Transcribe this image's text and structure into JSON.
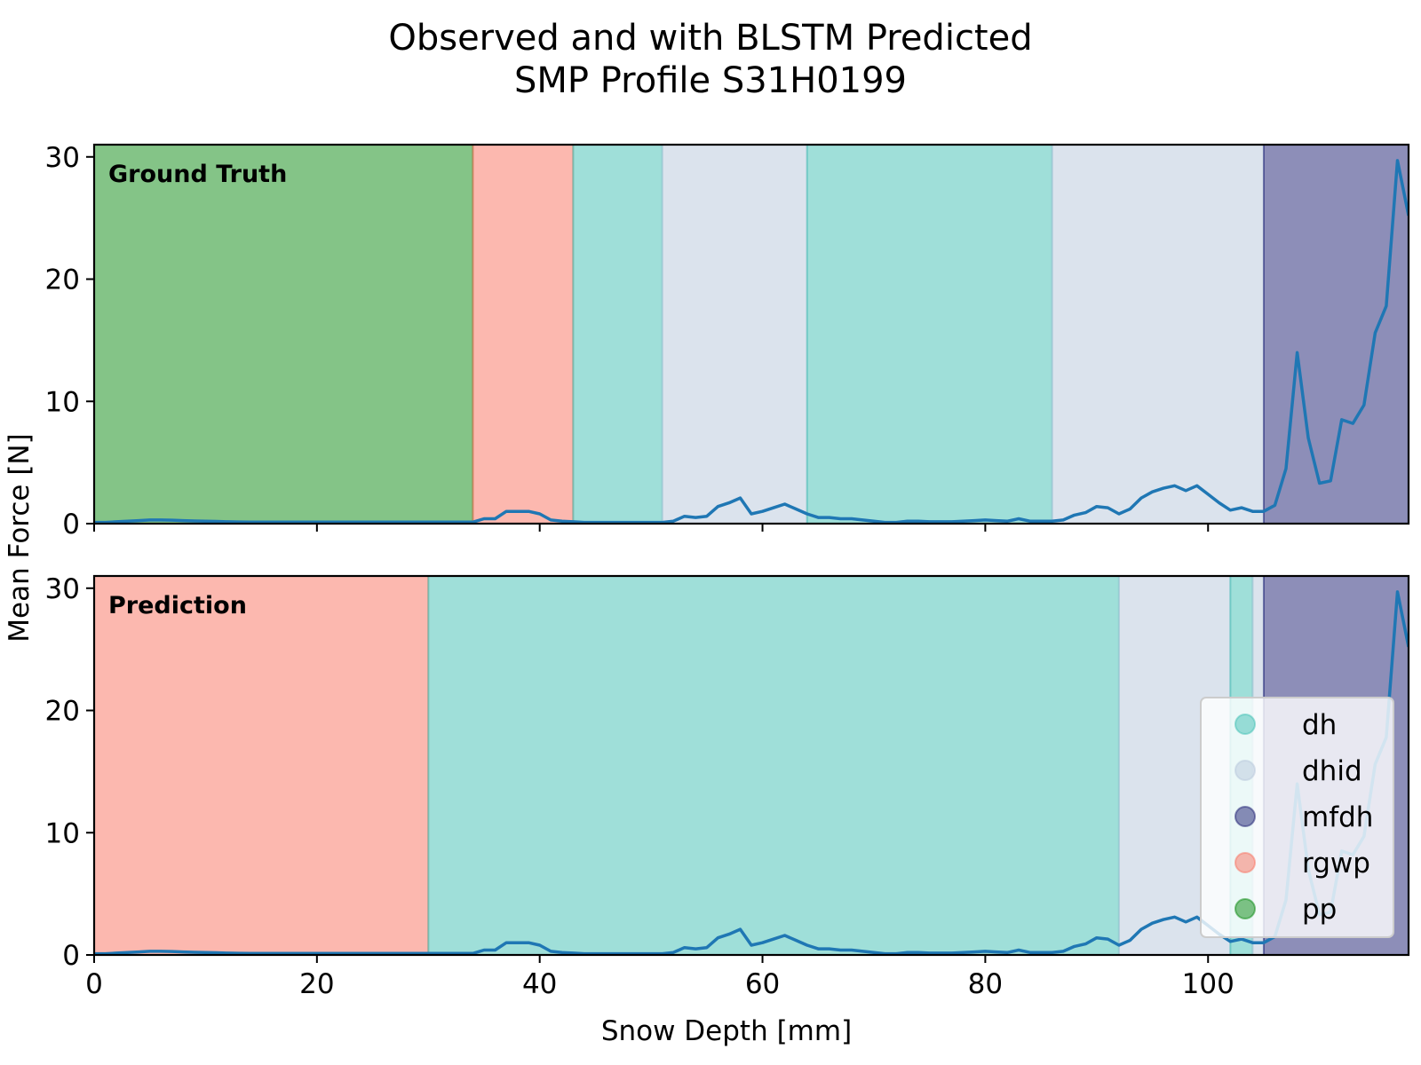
{
  "title_lines": [
    "Observed and with BLSTM Predicted",
    "SMP Profile S31H0199"
  ],
  "chart_data": {
    "type": "line",
    "title": "Observed and with BLSTM Predicted SMP Profile S31H0199",
    "xlabel": "Snow Depth [mm]",
    "ylabel": "Mean Force [N]",
    "xlim": [
      0,
      118
    ],
    "ylim": [
      0,
      31
    ],
    "x_ticks": [
      0,
      20,
      40,
      60,
      80,
      100
    ],
    "y_ticks": [
      0,
      10,
      20,
      30
    ],
    "grid": false,
    "legend_placement": "lower-right",
    "class_colors": {
      "dh": "#40c0b4",
      "dhid": "#b8c8dc",
      "mfdh": "#1b1d72",
      "rgwp": "#fa7260",
      "pp": "#0a8a10"
    },
    "legend": [
      "dh",
      "dhid",
      "mfdh",
      "rgwp",
      "pp"
    ],
    "line_color": "#1f77b4",
    "signal": {
      "x": [
        0,
        1,
        2,
        3,
        4,
        5,
        6,
        7,
        8,
        9,
        10,
        11,
        12,
        13,
        14,
        15,
        16,
        17,
        18,
        19,
        20,
        21,
        22,
        23,
        24,
        25,
        26,
        27,
        28,
        29,
        30,
        31,
        32,
        33,
        34,
        35,
        36,
        37,
        38,
        39,
        40,
        41,
        42,
        43,
        44,
        45,
        46,
        47,
        48,
        49,
        50,
        51,
        52,
        53,
        54,
        55,
        56,
        57,
        58,
        59,
        60,
        61,
        62,
        63,
        64,
        65,
        66,
        67,
        68,
        69,
        70,
        71,
        72,
        73,
        74,
        75,
        76,
        77,
        78,
        79,
        80,
        81,
        82,
        83,
        84,
        85,
        86,
        87,
        88,
        89,
        90,
        91,
        92,
        93,
        94,
        95,
        96,
        97,
        98,
        99,
        100,
        101,
        102,
        103,
        104,
        105,
        106,
        107,
        108,
        109,
        110,
        111,
        112,
        113,
        114,
        115,
        116,
        117,
        118
      ],
      "y": [
        0.1,
        0.1,
        0.15,
        0.2,
        0.25,
        0.3,
        0.3,
        0.28,
        0.25,
        0.22,
        0.2,
        0.18,
        0.15,
        0.14,
        0.13,
        0.12,
        0.12,
        0.12,
        0.12,
        0.12,
        0.12,
        0.12,
        0.12,
        0.12,
        0.12,
        0.12,
        0.12,
        0.12,
        0.12,
        0.12,
        0.12,
        0.12,
        0.12,
        0.12,
        0.12,
        0.4,
        0.4,
        1.0,
        1.0,
        1.0,
        0.8,
        0.3,
        0.2,
        0.15,
        0.1,
        0.1,
        0.1,
        0.1,
        0.1,
        0.1,
        0.1,
        0.1,
        0.2,
        0.6,
        0.5,
        0.6,
        1.4,
        1.7,
        2.1,
        0.8,
        1.0,
        1.3,
        1.6,
        1.2,
        0.8,
        0.5,
        0.5,
        0.4,
        0.4,
        0.3,
        0.2,
        0.1,
        0.1,
        0.2,
        0.2,
        0.15,
        0.15,
        0.15,
        0.2,
        0.25,
        0.3,
        0.25,
        0.2,
        0.4,
        0.2,
        0.2,
        0.2,
        0.3,
        0.7,
        0.9,
        1.4,
        1.3,
        0.8,
        1.2,
        2.1,
        2.6,
        2.9,
        3.1,
        2.7,
        3.1,
        2.4,
        1.7,
        1.1,
        1.3,
        1.0,
        1.0,
        1.5,
        4.5,
        14.0,
        7.0,
        3.3,
        3.5,
        8.5,
        8.2,
        9.7,
        15.6,
        17.8,
        29.7,
        25.2
      ]
    },
    "panels": [
      {
        "label": "Ground Truth",
        "segments": [
          {
            "start": 0,
            "end": 34,
            "class": "pp"
          },
          {
            "start": 34,
            "end": 43,
            "class": "rgwp"
          },
          {
            "start": 43,
            "end": 51,
            "class": "dh"
          },
          {
            "start": 51,
            "end": 64,
            "class": "dhid"
          },
          {
            "start": 64,
            "end": 86,
            "class": "dh"
          },
          {
            "start": 86,
            "end": 105,
            "class": "dhid"
          },
          {
            "start": 105,
            "end": 118,
            "class": "mfdh"
          }
        ]
      },
      {
        "label": "Prediction",
        "segments": [
          {
            "start": 0,
            "end": 30,
            "class": "rgwp"
          },
          {
            "start": 30,
            "end": 92,
            "class": "dh"
          },
          {
            "start": 92,
            "end": 102,
            "class": "dhid"
          },
          {
            "start": 102,
            "end": 104,
            "class": "dh"
          },
          {
            "start": 104,
            "end": 105,
            "class": "dhid"
          },
          {
            "start": 105,
            "end": 118,
            "class": "mfdh"
          }
        ]
      }
    ]
  }
}
